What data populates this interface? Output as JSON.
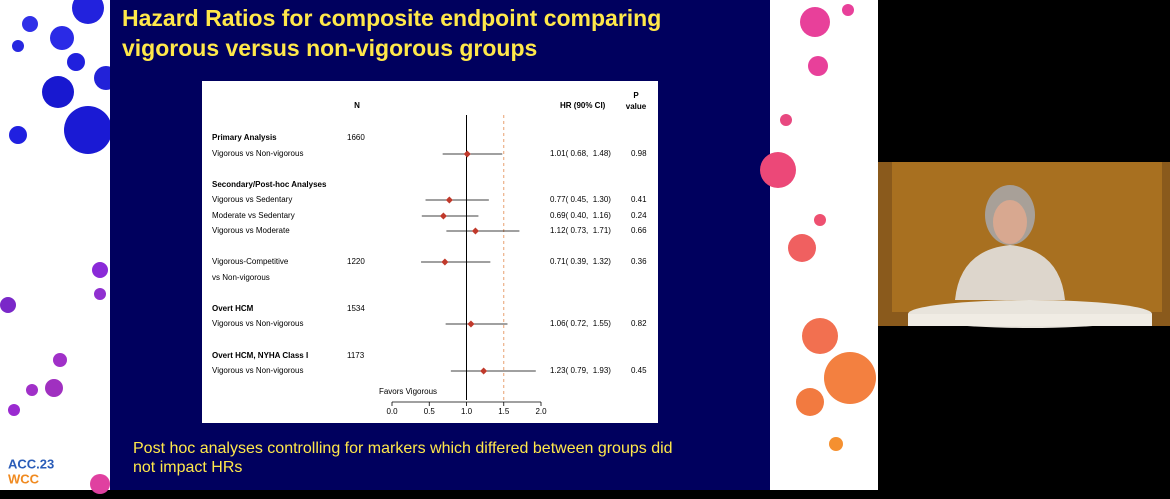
{
  "chart_data": {
    "type": "forest",
    "title": [
      "Hazard Ratios for composite endpoint comparing",
      "vigorous versus non-vigorous groups"
    ],
    "n_header": "N",
    "hr_header": "HR (90% CI)",
    "p_header": [
      "P",
      "value"
    ],
    "categories": [
      "Primary Analysis",
      "Vigorous vs Non-vigorous",
      "Secondary/Post-hoc Analyses",
      "Vigorous vs Sedentary",
      "Moderate vs Sedentary",
      "Vigorous vs Moderate",
      "Vigorous-Competitive",
      "vs Non-vigorous",
      "Overt HCM",
      "Vigorous vs Non-vigorous",
      "Overt HCM, NYHA Class I",
      "Vigorous vs Non-vigorous"
    ],
    "bold": [
      true,
      false,
      true,
      false,
      false,
      false,
      false,
      false,
      true,
      false,
      true,
      false
    ],
    "n": [
      1660,
      null,
      null,
      null,
      null,
      null,
      1220,
      null,
      1534,
      null,
      1173,
      null
    ],
    "values": [
      null,
      1.01,
      null,
      0.77,
      0.69,
      1.12,
      0.71,
      null,
      null,
      1.06,
      null,
      1.23
    ],
    "lower": [
      null,
      0.68,
      null,
      0.45,
      0.4,
      0.73,
      0.39,
      null,
      null,
      0.72,
      null,
      0.79
    ],
    "upper": [
      null,
      1.48,
      null,
      1.3,
      1.16,
      1.71,
      1.32,
      null,
      null,
      1.55,
      null,
      1.93
    ],
    "value_labels": [
      null,
      "1.01( 0.68,  1.48)",
      null,
      "0.77( 0.45,  1.30)",
      "0.69( 0.40,  1.16)",
      "1.12( 0.73,  1.71)",
      "0.71( 0.39,  1.32)",
      null,
      null,
      "1.06( 0.72,  1.55)",
      null,
      "1.23( 0.79,  1.93)"
    ],
    "p_values": [
      null,
      0.98,
      null,
      0.41,
      0.24,
      0.66,
      0.36,
      null,
      null,
      0.82,
      null,
      0.45
    ],
    "x_label": "Favors Vigorous",
    "xlim": [
      0,
      2
    ],
    "xticks": [
      {
        "value": 0,
        "label": "0.0"
      },
      {
        "value": 0.5,
        "label": "0.5"
      },
      {
        "value": 1,
        "label": "1.0"
      },
      {
        "value": 1.5,
        "label": "1.5"
      },
      {
        "value": 2,
        "label": "2.0"
      }
    ],
    "ref_line": 1,
    "dashed_line": 1.5,
    "color": "#c0392b",
    "dashed_color": "#e8a070"
  },
  "slide": {
    "footer": [
      "Post hoc analyses controlling for markers which differed between groups did",
      "not impact HRs"
    ],
    "logo": [
      "ACC.23",
      "WCC"
    ]
  }
}
